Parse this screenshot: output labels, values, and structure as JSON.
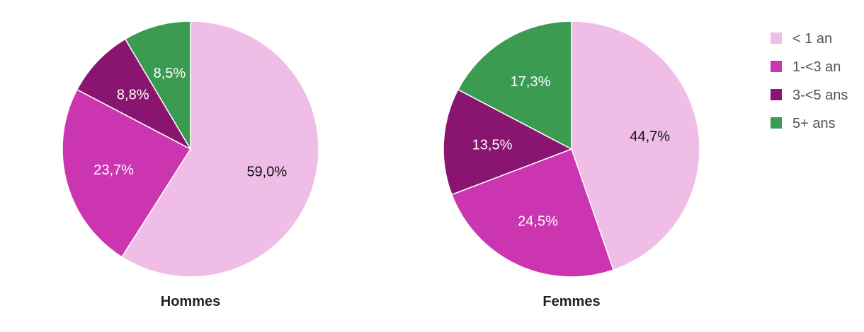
{
  "chart_data": [
    {
      "type": "pie",
      "title": "Hommes",
      "categories": [
        "< 1 an",
        "1-<3 an",
        "3-<5 ans",
        "5+ ans"
      ],
      "values": [
        59.0,
        23.7,
        8.8,
        8.5
      ],
      "labels": [
        "59,0%",
        "23,7%",
        "8,8%",
        "8,5%"
      ]
    },
    {
      "type": "pie",
      "title": "Femmes",
      "categories": [
        "< 1 an",
        "1-<3 an",
        "3-<5 ans",
        "5+ ans"
      ],
      "values": [
        44.7,
        24.5,
        13.5,
        17.3
      ],
      "labels": [
        "44,7%",
        "24,5%",
        "13,5%",
        "17,3%"
      ]
    }
  ],
  "legend": {
    "position": "top-right",
    "items": [
      {
        "label": "< 1 an",
        "color": "#efbde5"
      },
      {
        "label": "1-<3 an",
        "color": "#cc35b0"
      },
      {
        "label": "3-<5 ans",
        "color": "#8a1570"
      },
      {
        "label": "5+ ans",
        "color": "#3a9b51"
      }
    ]
  },
  "label_colors": [
    "#111111",
    "#ffffff",
    "#ffffff",
    "#ffffff"
  ]
}
